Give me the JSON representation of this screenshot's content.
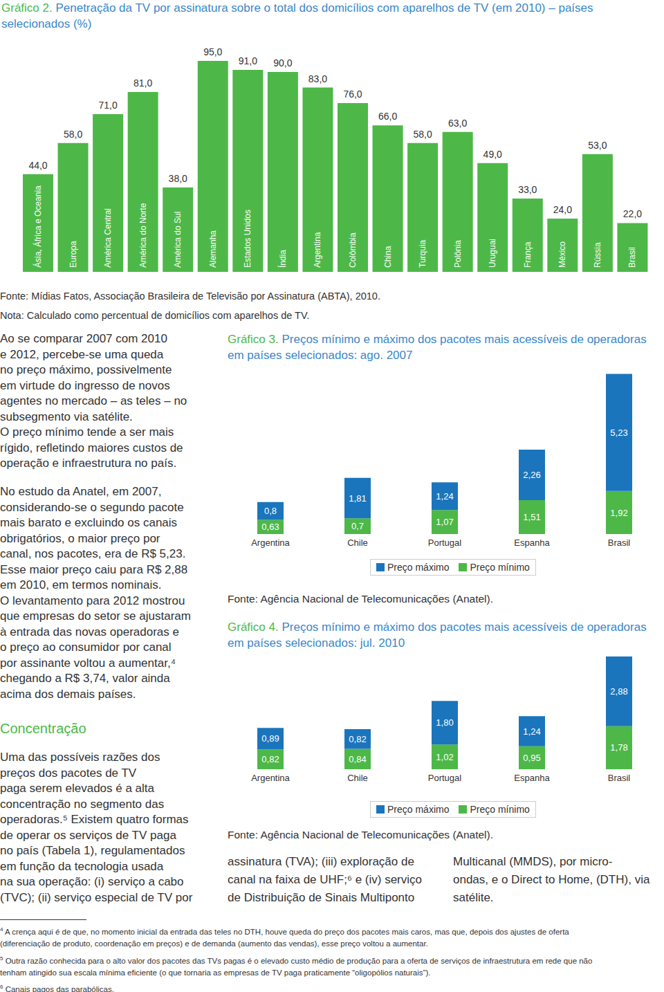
{
  "chart_data": [
    {
      "type": "bar",
      "label": "Gráfico 2.",
      "title": "Penetração da TV por assinatura sobre o total dos domicílios com aparelhos de TV (em 2010) – países selecionados (%)",
      "categories": [
        "Ásia, África e Oceania",
        "Europa",
        "América Central",
        "América do Norte",
        "América do Sul",
        "Alemanha",
        "Estados Unidos",
        "Índia",
        "Argentina",
        "Colômbia",
        "China",
        "Turquia",
        "Polônia",
        "Uruguai",
        "França",
        "México",
        "Rússia",
        "Brasil"
      ],
      "values": [
        44,
        58,
        71,
        81,
        38,
        95,
        91,
        90,
        83,
        76,
        66,
        58,
        63,
        49,
        33,
        24,
        53,
        22
      ],
      "value_labels": [
        "44,0",
        "58,0",
        "71,0",
        "81,0",
        "38,0",
        "95,0",
        "91,0",
        "90,0",
        "83,0",
        "76,0",
        "66,0",
        "58,0",
        "63,0",
        "49,0",
        "33,0",
        "24,0",
        "53,0",
        "22,0"
      ],
      "color": "#4db848",
      "ylim": [
        0,
        100
      ],
      "data_labels": true,
      "tick_labels": false,
      "source": "Fonte: Mídias Fatos, Associação Brasileira de Televisão por Assinatura (ABTA), 2010.",
      "note": "Nota: Calculado como percentual de domicílios com aparelhos de TV."
    },
    {
      "type": "bar",
      "label": "Gráfico 3.",
      "title": "Preços mínimo e máximo dos pacotes mais acessíveis de operadoras em países selecionados: ago. 2007",
      "categories": [
        "Argentina",
        "Chile",
        "Portugal",
        "Espanha",
        "Brasil"
      ],
      "series": [
        {
          "name": "Preço máximo",
          "color": "#1b75bc",
          "values": [
            0.8,
            1.81,
            1.24,
            2.26,
            5.23
          ],
          "value_labels": [
            "0,8",
            "1,81",
            "1,24",
            "2,26",
            "5,23"
          ]
        },
        {
          "name": "Preço mínimo",
          "color": "#4db848",
          "values": [
            0.63,
            0.7,
            1.07,
            1.51,
            1.92
          ],
          "value_labels": [
            "0,63",
            "0,7",
            "1,07",
            "1,51",
            "1,92"
          ]
        }
      ],
      "stacked": true,
      "ylim": [
        0,
        8
      ],
      "data_labels": true,
      "tick_labels": "x",
      "legend": "bottom",
      "source": "Fonte: Agência Nacional de Telecomunicações (Anatel)."
    },
    {
      "type": "bar",
      "label": "Gráfico 4.",
      "title": "Preços mínimo e máximo dos pacotes mais acessíveis de operadoras em países selecionados: jul. 2010",
      "categories": [
        "Argentina",
        "Chile",
        "Portugal",
        "Espanha",
        "Brasil"
      ],
      "series": [
        {
          "name": "Preço máximo",
          "color": "#1b75bc",
          "values": [
            0.89,
            0.82,
            1.8,
            1.24,
            2.88
          ],
          "value_labels": [
            "0,89",
            "0,82",
            "1,80",
            "1,24",
            "2,88"
          ]
        },
        {
          "name": "Preço mínimo",
          "color": "#4db848",
          "values": [
            0.82,
            0.84,
            1.02,
            0.95,
            1.78
          ],
          "value_labels": [
            "0,82",
            "0,84",
            "1,02",
            "0,95",
            "1,78"
          ]
        }
      ],
      "stacked": true,
      "ylim": [
        0,
        5
      ],
      "data_labels": true,
      "tick_labels": "x",
      "legend": "bottom",
      "source": "Fonte: Agência Nacional de Telecomunicações (Anatel)."
    }
  ],
  "text": {
    "left_column": [
      {
        "lines": [
          "Ao se comparar 2007 com 2010",
          "e 2012, percebe-se uma queda",
          "no preço máximo, possivelmente",
          "em virtude do ingresso de novos",
          "agentes no mercado – as teles – no",
          "subsegmento via satélite.",
          "O preço mínimo tende a ser mais",
          "rígido, refletindo maiores custos de",
          "operação e infraestrutura no país."
        ]
      },
      {
        "lines": [
          "No estudo da Anatel, em 2007,",
          "considerando-se o segundo pacote",
          "mais barato e excluindo os canais",
          "obrigatórios, o maior preço por",
          "canal, nos pacotes, era de R$ 5,23.",
          "Esse maior preço caiu para R$ 2,88",
          "em 2010, em termos nominais.",
          "O levantamento para 2012 mostrou",
          "que empresas do setor se ajustaram",
          "à entrada das novas operadoras e",
          "o preço ao consumidor por canal",
          "por assinante voltou a aumentar,⁴",
          "chegando a R$ 3,74, valor ainda",
          "acima dos demais países."
        ]
      },
      {
        "heading": "Concentração"
      },
      {
        "lines": [
          "Uma das possíveis razões dos",
          "preços dos pacotes de TV",
          "paga serem elevados é a alta",
          "concentração no segmento das",
          "operadoras.⁵ Existem quatro formas",
          "de operar os serviços de TV paga",
          "no país (Tabela 1), regulamentados",
          "em função da tecnologia usada",
          "na sua operação: (i) serviço a cabo",
          "(TVC); (ii) serviço especial de TV por"
        ]
      }
    ],
    "right_columns": [
      [
        "assinatura (TVA); (iii) exploração de",
        "canal na faixa de UHF;⁶ e (iv) serviço",
        "de Distribuição de Sinais Multiponto"
      ],
      [
        "Multicanal (MMDS), por micro-",
        "ondas, e o Direct to Home, (DTH), via",
        "satélite."
      ]
    ],
    "footnotes": [
      {
        "number": "4",
        "lines": [
          "A crença aqui é de que, no momento inicial da entrada das teles no DTH, houve queda do preço dos pacotes mais caros, mas que, depois dos ajustes de oferta",
          "(diferenciação de produto, coordenação em preços) e de demanda (aumento das vendas), esse preço voltou a aumentar."
        ]
      },
      {
        "number": "5",
        "lines": [
          "Outra razão conhecida para o alto valor dos pacotes das TVs pagas é o elevado custo médio de produção para a oferta de serviços de infraestrutura em rede que não",
          "tenham atingido sua escala mínima eficiente (o que tornaria as empresas de TV paga praticamente “oligopólios naturais”)."
        ]
      },
      {
        "number": "6",
        "lines": [
          "Canais pagos das parabólicas."
        ]
      }
    ]
  }
}
